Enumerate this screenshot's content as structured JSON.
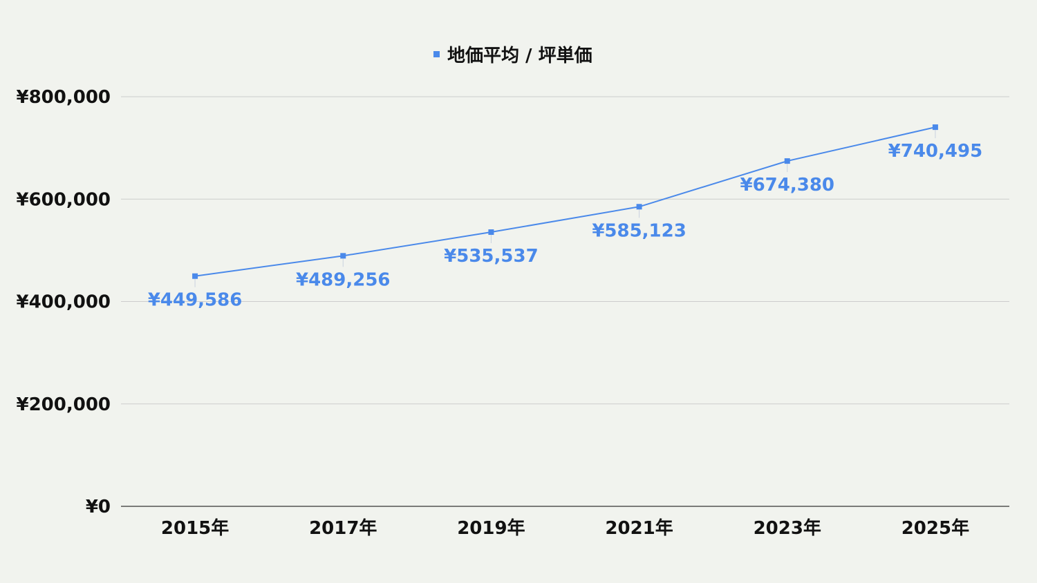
{
  "chart_data": {
    "type": "line",
    "title": "",
    "xlabel": "",
    "ylabel": "",
    "categories": [
      "2015年",
      "2017年",
      "2019年",
      "2021年",
      "2023年",
      "2025年"
    ],
    "series": [
      {
        "name": "地価平均 / 坪単価",
        "values": [
          449586,
          489256,
          535537,
          585123,
          674380,
          740495
        ],
        "labels": [
          "¥449,586",
          "¥489,256",
          "¥535,537",
          "¥585,123",
          "¥674,380",
          "¥740,495"
        ]
      }
    ],
    "ylim": [
      0,
      800000
    ],
    "yticks": [
      0,
      200000,
      400000,
      600000,
      800000
    ],
    "ytick_labels": [
      "¥0",
      "¥200,000",
      "¥400,000",
      "¥600,000",
      "¥800,000"
    ],
    "grid": true,
    "legend_position": "top-center",
    "colors": {
      "series": "#4a89ea",
      "grid": "#cccccc",
      "axis": "#333333",
      "background": "#f1f3ee"
    }
  }
}
